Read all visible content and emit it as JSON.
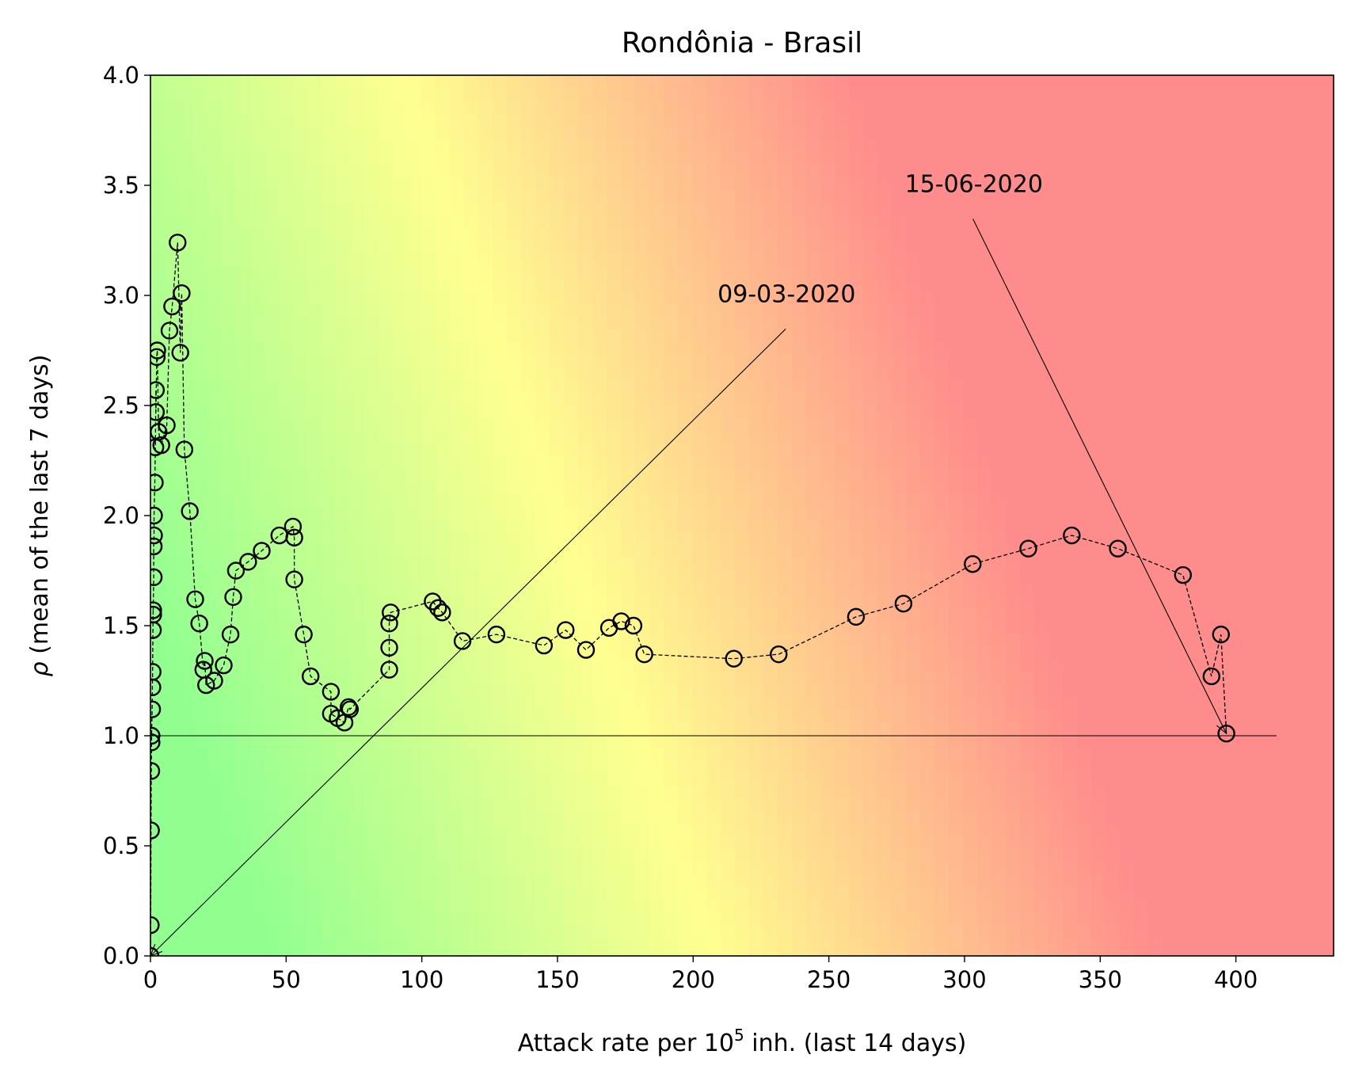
{
  "chart_data": {
    "type": "scatter",
    "title": "Rondônia - Brasil",
    "xlabel": "Attack rate per 10",
    "xlabel_sup": "5",
    "xlabel_suffix": " inh. (last 14 days)",
    "ylabel_symbol": "ρ",
    "ylabel": " (mean of the last 7 days)",
    "xlim": [
      0,
      436
    ],
    "ylim": [
      0,
      4
    ],
    "xticks": [
      0,
      50,
      100,
      150,
      200,
      250,
      300,
      350,
      400
    ],
    "yticks": [
      "0.0",
      "0.5",
      "1.0",
      "1.5",
      "2.0",
      "2.5",
      "3.0",
      "3.5",
      "4.0"
    ],
    "background": "risk gradient from green (low attack rate, low rho) through yellow to red (high)",
    "colors": {
      "low": "#90ff90",
      "mid": "#ffff90",
      "high": "#ff8c8c",
      "marker_edge": "#000000"
    },
    "reference_line": {
      "y": 1.0,
      "x_range": [
        0,
        415
      ]
    },
    "series": [
      {
        "points": [
          [
            0.0,
            0.0
          ],
          [
            0.1,
            0.14
          ],
          [
            0.2,
            0.57
          ],
          [
            0.3,
            0.84
          ],
          [
            0.4,
            0.97
          ],
          [
            0.4,
            1.0
          ],
          [
            0.6,
            1.12
          ],
          [
            0.7,
            1.22
          ],
          [
            0.8,
            1.29
          ],
          [
            0.9,
            1.48
          ],
          [
            1.0,
            1.57
          ],
          [
            1.0,
            1.55
          ],
          [
            1.2,
            1.72
          ],
          [
            1.2,
            1.86
          ],
          [
            1.3,
            1.91
          ],
          [
            1.3,
            2.0
          ],
          [
            1.6,
            2.15
          ],
          [
            1.8,
            2.31
          ],
          [
            2.0,
            2.57
          ],
          [
            2.0,
            2.47
          ],
          [
            2.3,
            2.72
          ],
          [
            2.5,
            2.75
          ],
          [
            3.0,
            2.38
          ],
          [
            4.0,
            2.32
          ],
          [
            6.0,
            2.41
          ],
          [
            7.0,
            2.84
          ],
          [
            8.0,
            2.95
          ],
          [
            10.0,
            3.24
          ],
          [
            11.0,
            2.74
          ],
          [
            11.5,
            3.01
          ],
          [
            12.5,
            2.3
          ],
          [
            14.5,
            2.02
          ],
          [
            16.5,
            1.62
          ],
          [
            18.0,
            1.51
          ],
          [
            19.5,
            1.3
          ],
          [
            20.0,
            1.34
          ],
          [
            20.5,
            1.23
          ],
          [
            23.5,
            1.25
          ],
          [
            27.0,
            1.32
          ],
          [
            29.5,
            1.46
          ],
          [
            30.5,
            1.63
          ],
          [
            31.5,
            1.75
          ],
          [
            36.0,
            1.79
          ],
          [
            41.0,
            1.84
          ],
          [
            47.5,
            1.91
          ],
          [
            52.5,
            1.95
          ],
          [
            53.0,
            1.9
          ],
          [
            53.0,
            1.71
          ],
          [
            56.5,
            1.46
          ],
          [
            59.0,
            1.27
          ],
          [
            66.5,
            1.2
          ],
          [
            66.5,
            1.1
          ],
          [
            69.0,
            1.08
          ],
          [
            71.5,
            1.06
          ],
          [
            73.0,
            1.13
          ],
          [
            73.5,
            1.12
          ],
          [
            88.0,
            1.3
          ],
          [
            88.0,
            1.4
          ],
          [
            88.0,
            1.51
          ],
          [
            88.5,
            1.56
          ],
          [
            104.0,
            1.61
          ],
          [
            106.0,
            1.58
          ],
          [
            107.5,
            1.56
          ],
          [
            115.0,
            1.43
          ],
          [
            127.5,
            1.46
          ],
          [
            145.0,
            1.41
          ],
          [
            153.0,
            1.48
          ],
          [
            160.5,
            1.39
          ],
          [
            169.0,
            1.49
          ],
          [
            173.5,
            1.52
          ],
          [
            178.0,
            1.5
          ],
          [
            182.0,
            1.37
          ],
          [
            215.0,
            1.35
          ],
          [
            231.5,
            1.37
          ],
          [
            260.0,
            1.54
          ],
          [
            277.5,
            1.6
          ],
          [
            303.0,
            1.78
          ],
          [
            323.5,
            1.85
          ],
          [
            339.5,
            1.91
          ],
          [
            356.5,
            1.85
          ],
          [
            380.5,
            1.73
          ],
          [
            391.0,
            1.27
          ],
          [
            394.5,
            1.46
          ],
          [
            396.5,
            1.01
          ]
        ]
      }
    ],
    "annotations": [
      {
        "text": "09-03-2020",
        "target": [
          0.0,
          0.0
        ],
        "text_pos": [
          209,
          2.97
        ]
      },
      {
        "text": "15-06-2020",
        "target": [
          396.5,
          1.01
        ],
        "text_pos": [
          278,
          3.47
        ]
      }
    ]
  }
}
